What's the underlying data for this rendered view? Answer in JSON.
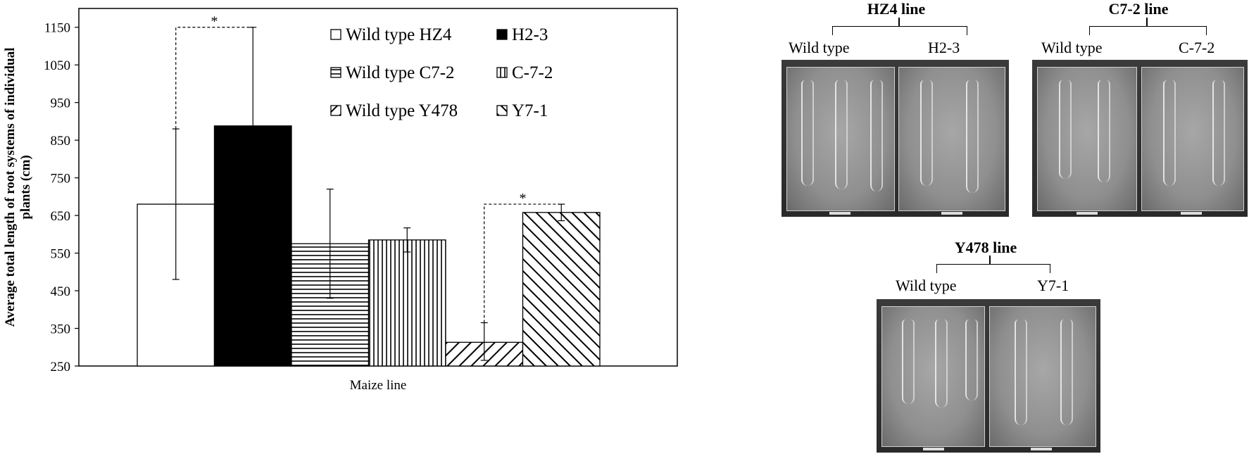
{
  "chart_data": {
    "type": "bar",
    "xlabel": "Maize line",
    "ylabel": "Average total length of root systems of individual plants  (cm)",
    "ylim": [
      250,
      1200
    ],
    "yticks": [
      250,
      350,
      450,
      550,
      650,
      750,
      850,
      950,
      1050,
      1150
    ],
    "grid": false,
    "legend_position": "top-right",
    "categories": [
      "Wild type HZ4",
      "H2-3",
      "Wild type C7-2",
      "C-7-2",
      "Wild type Y478",
      "Y7-1"
    ],
    "values": [
      680,
      888,
      575,
      585,
      313,
      658
    ],
    "error_high": [
      880,
      1150,
      720,
      617,
      365,
      680
    ],
    "error_low": [
      480,
      888,
      430,
      553,
      265,
      636
    ],
    "fills": [
      "white",
      "black",
      "horizontal-lines",
      "vertical-lines",
      "diagonal-up",
      "diagonal-down"
    ],
    "significance": [
      {
        "from": 0,
        "to": 1,
        "level": 1150,
        "label": "*"
      },
      {
        "from": 4,
        "to": 5,
        "level": 680,
        "label": "*"
      }
    ],
    "colors": {
      "bar_stroke": "#000000",
      "black_fill": "#000000"
    }
  },
  "photos": {
    "panels": [
      {
        "title": "HZ4 line",
        "left_label": "Wild  type",
        "right_label": "H2-3"
      },
      {
        "title": "C7-2 line",
        "left_label": "Wild  type",
        "right_label": "C-7-2"
      },
      {
        "title": "Y478 line",
        "left_label": "Wild  type",
        "right_label": "Y7-1"
      }
    ]
  }
}
